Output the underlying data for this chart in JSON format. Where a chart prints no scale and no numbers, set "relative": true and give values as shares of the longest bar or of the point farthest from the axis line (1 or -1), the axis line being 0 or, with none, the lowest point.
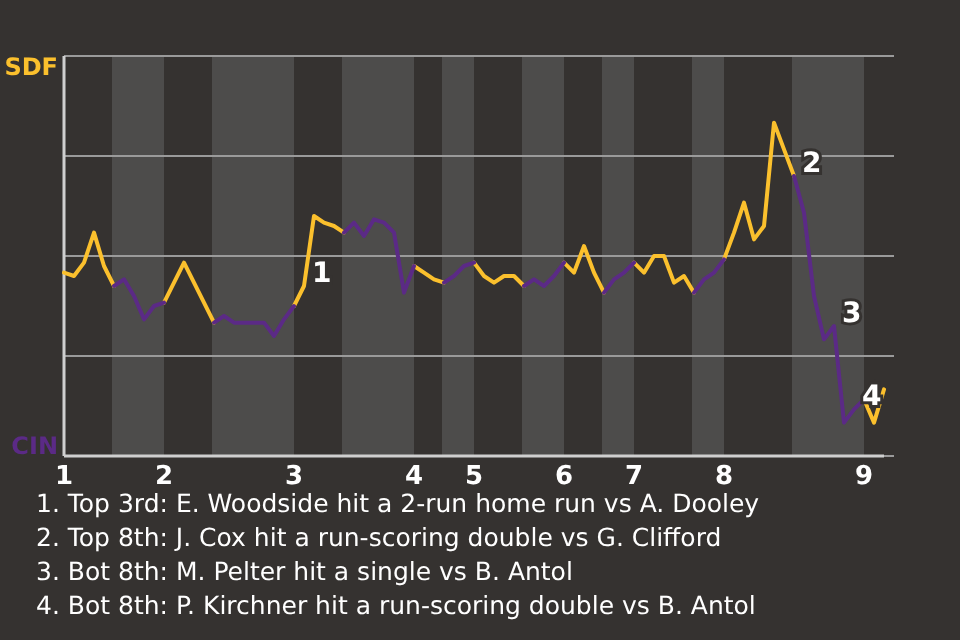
{
  "chart_data": {
    "type": "line",
    "relative": true,
    "categories": [
      "1",
      null,
      null,
      null,
      null,
      null,
      null,
      null,
      null,
      null,
      "2",
      null,
      null,
      null,
      null,
      null,
      null,
      null,
      null,
      null,
      null,
      null,
      null,
      "3",
      null,
      null,
      null,
      null,
      null,
      null,
      null,
      null,
      null,
      null,
      null,
      "4",
      null,
      null,
      null,
      null,
      null,
      "5",
      null,
      null,
      null,
      null,
      null,
      null,
      null,
      null,
      "6",
      null,
      null,
      null,
      null,
      null,
      null,
      "7",
      null,
      null,
      null,
      null,
      null,
      null,
      null,
      null,
      "8",
      null,
      null,
      null,
      null,
      null,
      null,
      null,
      null,
      null,
      null,
      null,
      null,
      null,
      "9",
      null,
      null
    ],
    "grid": "y",
    "legend": "left",
    "series": [
      {
        "name": "SDF",
        "color": "#fbc02d",
        "values": [
          0.55,
          0.54,
          0.58,
          0.67,
          0.57,
          0.51,
          null,
          null,
          null,
          null,
          0.46,
          0.52,
          0.58,
          0.52,
          0.46,
          0.4,
          null,
          null,
          null,
          null,
          null,
          null,
          null,
          0.45,
          0.51,
          0.72,
          0.7,
          0.69,
          0.67,
          null,
          null,
          null,
          null,
          null,
          null,
          0.57,
          0.55,
          0.53,
          0.52,
          null,
          null,
          0.58,
          0.54,
          0.52,
          0.54,
          0.54,
          0.51,
          null,
          null,
          null,
          0.58,
          0.55,
          0.63,
          0.55,
          0.49,
          null,
          null,
          0.58,
          0.55,
          0.6,
          0.6,
          0.52,
          0.54,
          0.49,
          null,
          null,
          0.59,
          0.67,
          0.76,
          0.65,
          0.69,
          1,
          0.92,
          0.84,
          null,
          null,
          null,
          null,
          null,
          null,
          0.17,
          0.1,
          0.2
        ]
      },
      {
        "name": "CIN",
        "color": "#5b2a86",
        "values": [
          null,
          null,
          null,
          null,
          null,
          0.51,
          0.53,
          0.48,
          0.41,
          0.45,
          0.46,
          null,
          null,
          null,
          null,
          0.4,
          0.42,
          0.4,
          0.4,
          0.4,
          0.4,
          0.36,
          0.41,
          0.45,
          null,
          null,
          null,
          null,
          0.67,
          0.7,
          0.66,
          0.71,
          0.7,
          0.67,
          0.49,
          0.57,
          null,
          null,
          0.52,
          0.54,
          0.57,
          0.58,
          null,
          null,
          null,
          null,
          0.51,
          0.53,
          0.51,
          0.54,
          0.58,
          null,
          null,
          null,
          0.49,
          0.53,
          0.55,
          0.58,
          null,
          null,
          null,
          null,
          null,
          0.49,
          0.53,
          0.55,
          0.59,
          null,
          null,
          null,
          null,
          null,
          null,
          0.84,
          0.73,
          0.48,
          0.35,
          0.39,
          0.1,
          0.14,
          0.17,
          null,
          null
        ]
      }
    ],
    "annotations": [
      "1",
      "2",
      "3",
      "4",
      "1. Top 3rd: E. Woodside hit a 2-run home run vs A. Dooley",
      "2. Top 8th: J. Cox hit a run-scoring double vs G. Clifford",
      "3. Bot 8th: M. Pelter hit a single vs B. Antol",
      "4. Bot 8th: P. Kirchner hit a run-scoring double vs B. Antol"
    ]
  }
}
